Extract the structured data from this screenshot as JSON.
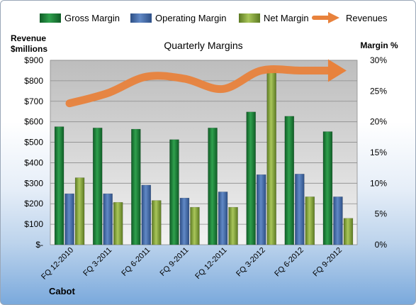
{
  "chart_data": {
    "type": "bar",
    "title": "Quarterly Margins",
    "categories": [
      "FQ 12-2010",
      "FQ 3-2011",
      "FQ 6-2011",
      "FQ 9-2011",
      "FQ 12-2011",
      "FQ 3-2012",
      "FQ 6-2012",
      "FQ 9-2012"
    ],
    "series": [
      {
        "name": "Gross Margin",
        "axis": "right",
        "unit": "%",
        "color": "#1e8a3c",
        "values": [
          19.2,
          19.0,
          18.8,
          17.1,
          19.0,
          21.6,
          20.9,
          18.4
        ]
      },
      {
        "name": "Operating Margin",
        "axis": "right",
        "unit": "%",
        "color": "#4a72ae",
        "values": [
          8.3,
          8.3,
          9.7,
          7.6,
          8.6,
          11.4,
          11.5,
          7.8
        ]
      },
      {
        "name": "Net Margin",
        "axis": "right",
        "unit": "%",
        "color": "#8fae3e",
        "values": [
          10.9,
          6.9,
          7.2,
          6.1,
          6.1,
          28.5,
          7.8,
          4.3
        ]
      },
      {
        "name": "Revenues",
        "type": "line",
        "axis": "left",
        "unit": "$millions",
        "color": "#e8823c",
        "values": [
          690,
          740,
          820,
          810,
          760,
          850,
          850,
          850
        ]
      }
    ],
    "left_axis": {
      "label_line1": "Revenue",
      "label_line2": "$millions",
      "ylim": [
        0,
        900
      ],
      "ticks": [
        "$-",
        "$100",
        "$200",
        "$300",
        "$400",
        "$500",
        "$600",
        "$700",
        "$800",
        "$900"
      ]
    },
    "right_axis": {
      "label": "Margin %",
      "ylim": [
        0,
        30
      ],
      "ticks": [
        "0%",
        "5%",
        "10%",
        "15%",
        "20%",
        "25%",
        "30%"
      ]
    },
    "legend": {
      "position": "top",
      "entries": [
        "Gross Margin",
        "Operating Margin",
        "Net Margin",
        "Revenues"
      ]
    },
    "grid": true
  },
  "footer_label": "Cabot"
}
